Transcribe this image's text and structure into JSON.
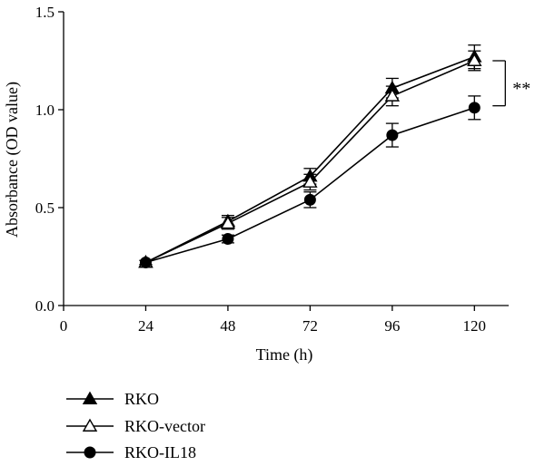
{
  "chart_data": {
    "type": "line",
    "xlabel": "Time (h)",
    "ylabel": "Absorbance (OD value)",
    "xlim": [
      0,
      130
    ],
    "ylim": [
      0,
      1.5
    ],
    "xticks": [
      0,
      24,
      48,
      72,
      96,
      120
    ],
    "xtick_labels": [
      "0",
      "24",
      "48",
      "72",
      "96",
      "120"
    ],
    "yticks": [
      0,
      0.5,
      1.0,
      1.5
    ],
    "ytick_labels": [
      "0.0",
      "0.5",
      "1.0",
      "1.5"
    ],
    "x": [
      24,
      48,
      72,
      96,
      120
    ],
    "series": [
      {
        "name": "RKO",
        "marker": "filled-triangle",
        "values": [
          0.22,
          0.43,
          0.66,
          1.11,
          1.27
        ],
        "errors": [
          0.01,
          0.03,
          0.04,
          0.05,
          0.06
        ]
      },
      {
        "name": "RKO-vector",
        "marker": "open-triangle",
        "values": [
          0.22,
          0.42,
          0.63,
          1.07,
          1.25
        ],
        "errors": [
          0.01,
          0.03,
          0.04,
          0.05,
          0.05
        ]
      },
      {
        "name": "RKO-IL18",
        "marker": "filled-circle",
        "values": [
          0.22,
          0.34,
          0.54,
          0.87,
          1.01
        ],
        "errors": [
          0.01,
          0.02,
          0.04,
          0.06,
          0.06
        ]
      }
    ],
    "significance": {
      "label": "**",
      "x": 120,
      "y_top": 1.25,
      "y_bottom": 1.02
    },
    "legend_position": "bottom-left",
    "grid": false,
    "color": "#000000"
  }
}
